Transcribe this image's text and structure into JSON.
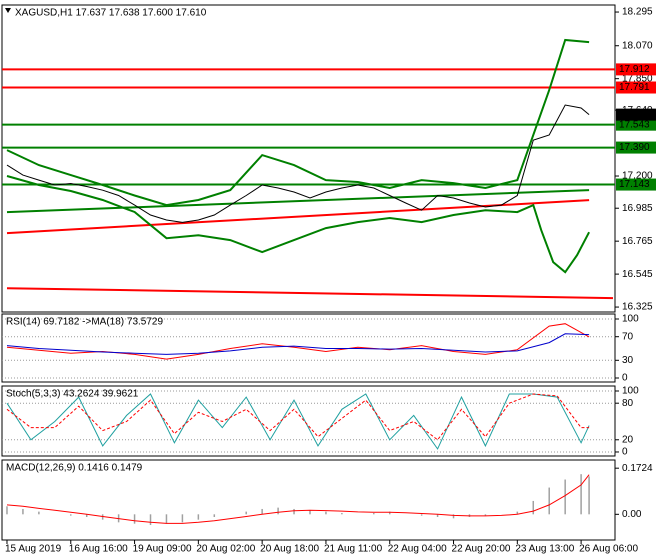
{
  "chart_data": [
    {
      "type": "price",
      "title": "XAGUSD,H1  17.637 17.638 17.600 17.610",
      "xlim": [
        -1.25,
        152.5
      ],
      "xticks": [
        {
          "value": 0,
          "label": "15 Aug 2019"
        },
        {
          "value": 16,
          "label": "16 Aug 16:00"
        },
        {
          "value": 32,
          "label": "19 Aug 09:00"
        },
        {
          "value": 48,
          "label": "20 Aug 02:00"
        },
        {
          "value": 64,
          "label": "20 Aug 18:00"
        },
        {
          "value": 80,
          "label": "21 Aug 11:00"
        },
        {
          "value": 96,
          "label": "22 Aug 04:00"
        },
        {
          "value": 112,
          "label": "22 Aug 20:00"
        },
        {
          "value": 128,
          "label": "23 Aug 13:00"
        },
        {
          "value": 144,
          "label": "26 Aug 06:00"
        }
      ],
      "ylim": [
        16.292,
        18.342
      ],
      "yticks": [
        18.295,
        {
          "value": 18.07,
          "label": "18.070"
        },
        {
          "value": 17.85,
          "label": "17.850"
        },
        {
          "value": 17.64,
          "label": "17.640"
        },
        {
          "value": 17.2,
          "label": "17.200"
        },
        16.985,
        16.765,
        16.545,
        16.325
      ],
      "levels": [
        {
          "value": 17.912,
          "color": "#ff0000"
        },
        {
          "value": 17.791,
          "color": "#ff0000"
        },
        {
          "value": 17.543,
          "color": "#008000"
        },
        {
          "value": 17.39,
          "label": "17.390",
          "color": "#008000"
        },
        {
          "value": 17.143,
          "color": "#008000"
        }
      ],
      "price_label": {
        "value": 17.61,
        "label": "17.610"
      },
      "series": [
        {
          "color": "#ff0000",
          "x": [
            0,
            152
          ],
          "values": [
            16.451,
            16.385
          ]
        },
        {
          "color": "#ff0000",
          "x": [
            0,
            146
          ],
          "values": [
            16.819,
            17.039
          ]
        },
        {
          "color": "#008000",
          "x": [
            0,
            146
          ],
          "values": [
            16.959,
            17.106
          ]
        },
        {
          "color": "#008000",
          "x": [
            0,
            8,
            16,
            24,
            32,
            40,
            48,
            56,
            64,
            72,
            80,
            88,
            96,
            104,
            112,
            120,
            128,
            136,
            140,
            146
          ],
          "values": [
            17.373,
            17.273,
            17.206,
            17.14,
            17.07,
            17.006,
            17.04,
            17.106,
            17.34,
            17.273,
            17.173,
            17.16,
            17.12,
            17.173,
            17.153,
            17.12,
            17.173,
            17.774,
            18.108,
            18.094
          ]
        },
        {
          "color": "#008000",
          "x": [
            0,
            8,
            16,
            24,
            32,
            40,
            48,
            56,
            64,
            72,
            80,
            88,
            96,
            104,
            112,
            120,
            128,
            132,
            134,
            137,
            140,
            143,
            146
          ],
          "values": [
            17.2,
            17.14,
            17.1,
            17.04,
            16.96,
            16.785,
            16.805,
            16.772,
            16.692,
            16.772,
            16.852,
            16.892,
            16.92,
            16.892,
            16.94,
            16.972,
            16.959,
            17.006,
            16.839,
            16.625,
            16.558,
            16.672,
            16.825
          ]
        },
        {
          "color": "#000000",
          "x": [
            0,
            4,
            8,
            12,
            16,
            20,
            24,
            28,
            32,
            36,
            40,
            44,
            48,
            52,
            56,
            60,
            64,
            68,
            72,
            76,
            80,
            84,
            88,
            92,
            96,
            100,
            104,
            108,
            112,
            116,
            120,
            124,
            128,
            132,
            136,
            140,
            144,
            146
          ],
          "values": [
            17.273,
            17.206,
            17.173,
            17.14,
            17.15,
            17.13,
            17.105,
            17.07,
            17.006,
            16.94,
            16.906,
            16.89,
            16.906,
            16.94,
            17.006,
            17.07,
            17.14,
            17.12,
            17.093,
            17.053,
            17.093,
            17.12,
            17.14,
            17.12,
            17.07,
            17.02,
            16.972,
            17.07,
            17.053,
            17.02,
            16.993,
            17.006,
            17.07,
            17.44,
            17.474,
            17.674,
            17.654,
            17.61
          ]
        }
      ]
    },
    {
      "type": "oscillator",
      "title": "RSI(14) 69.7182  ->MA(18) 73.5729",
      "ylim": [
        -6.8,
        108.5
      ],
      "yticks": [
        100,
        70,
        30,
        0
      ],
      "grid": true,
      "series": [
        {
          "color": "#ff0000",
          "x": [
            0,
            8,
            16,
            24,
            32,
            40,
            48,
            56,
            64,
            72,
            80,
            88,
            96,
            104,
            112,
            120,
            128,
            136,
            140,
            146
          ],
          "values": [
            52,
            47,
            42,
            45,
            40,
            32,
            40,
            50,
            58,
            52,
            45,
            52,
            48,
            55,
            45,
            40,
            48,
            88,
            92,
            69.7182
          ]
        },
        {
          "color": "#0000cc",
          "x": [
            0,
            8,
            16,
            24,
            32,
            40,
            48,
            56,
            64,
            72,
            80,
            88,
            96,
            104,
            112,
            120,
            128,
            136,
            140,
            146
          ],
          "values": [
            55,
            50,
            47,
            44,
            42,
            40,
            42,
            46,
            52,
            54,
            50,
            50,
            49,
            50,
            47,
            44,
            46,
            60,
            75,
            73.5729
          ]
        }
      ]
    },
    {
      "type": "oscillator",
      "title": "Stoch(5,3,3) 43.2624 39.9621",
      "ylim": [
        -6.6,
        108.2
      ],
      "yticks": [
        100,
        80,
        20,
        0
      ],
      "grid": true,
      "series": [
        {
          "color": "#20a0a0",
          "x": [
            0,
            6,
            12,
            18,
            24,
            30,
            36,
            42,
            48,
            54,
            60,
            66,
            72,
            78,
            84,
            90,
            96,
            102,
            108,
            114,
            120,
            126,
            132,
            138,
            144,
            146
          ],
          "values": [
            80,
            20,
            50,
            90,
            10,
            60,
            95,
            15,
            85,
            40,
            90,
            20,
            85,
            10,
            70,
            95,
            20,
            60,
            5,
            90,
            10,
            95,
            95,
            90,
            15,
            43.2624
          ]
        },
        {
          "color": "#ff0000",
          "dashed": true,
          "x": [
            0,
            6,
            12,
            18,
            24,
            30,
            36,
            42,
            48,
            54,
            60,
            66,
            72,
            78,
            84,
            90,
            96,
            102,
            108,
            114,
            120,
            126,
            132,
            138,
            144,
            146
          ],
          "values": [
            70,
            40,
            40,
            75,
            35,
            50,
            85,
            30,
            65,
            50,
            70,
            35,
            70,
            25,
            55,
            85,
            35,
            50,
            20,
            70,
            25,
            80,
            95,
            92,
            40,
            39.9621
          ]
        }
      ]
    },
    {
      "type": "macd",
      "title": "MACD(12,26,9) 0.1416 0.1479",
      "ylim": [
        -0.096,
        0.203
      ],
      "yticks": [
        0.1724,
        {
          "value": 0,
          "label": "0.00"
        }
      ],
      "series": [
        {
          "kind": "bar",
          "color": "#a0a0a0",
          "x": [
            0,
            4,
            8,
            12,
            16,
            20,
            24,
            28,
            32,
            36,
            40,
            44,
            48,
            52,
            56,
            60,
            64,
            68,
            72,
            76,
            80,
            84,
            88,
            92,
            96,
            100,
            104,
            108,
            112,
            116,
            120,
            124,
            128,
            132,
            136,
            140,
            144,
            146
          ],
          "values": [
            0.03,
            0.02,
            0.01,
            0,
            -0.005,
            -0.01,
            -0.02,
            -0.03,
            -0.035,
            -0.04,
            -0.035,
            -0.03,
            -0.02,
            -0.01,
            0,
            0.01,
            0.02,
            0.025,
            0.02,
            0.015,
            0.01,
            0.005,
            0,
            0.005,
            0.01,
            0,
            -0.005,
            -0.01,
            -0.015,
            -0.01,
            -0.005,
            0,
            0.01,
            0.05,
            0.1,
            0.13,
            0.15,
            0.1416
          ]
        },
        {
          "kind": "line",
          "color": "#ff0000",
          "x": [
            0,
            4,
            8,
            12,
            16,
            20,
            24,
            28,
            32,
            36,
            40,
            44,
            48,
            52,
            56,
            60,
            64,
            68,
            72,
            76,
            80,
            84,
            88,
            92,
            96,
            100,
            104,
            108,
            112,
            116,
            120,
            124,
            128,
            132,
            136,
            140,
            144,
            146
          ],
          "values": [
            0.035,
            0.03,
            0.022,
            0.015,
            0.008,
            0,
            -0.008,
            -0.016,
            -0.024,
            -0.03,
            -0.034,
            -0.034,
            -0.03,
            -0.024,
            -0.016,
            -0.008,
            0,
            0.008,
            0.013,
            0.015,
            0.014,
            0.012,
            0.009,
            0.008,
            0.008,
            0.006,
            0.003,
            0,
            -0.004,
            -0.006,
            -0.006,
            -0.004,
            0,
            0.012,
            0.035,
            0.07,
            0.11,
            0.1479
          ]
        }
      ]
    }
  ]
}
